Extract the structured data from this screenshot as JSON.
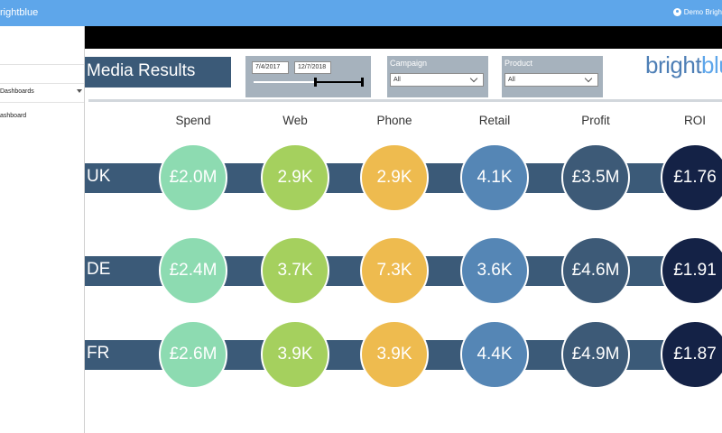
{
  "topbar": {
    "brand": "rightblue",
    "user": "Demo Brigh"
  },
  "sidebar": {
    "select_value": "Dashboards",
    "item": "ashboard"
  },
  "report": {
    "title": "Media Results",
    "date_from": "7/4/2017",
    "date_to": "12/7/2018",
    "filters": [
      {
        "label": "Campaign",
        "value": "All"
      },
      {
        "label": "Product",
        "value": "All"
      }
    ],
    "logo_part1": "bright",
    "logo_part2": "blu",
    "columns": [
      "Spend",
      "Web",
      "Phone",
      "Retail",
      "Profit",
      "ROI"
    ],
    "rows": [
      {
        "label": "UK",
        "values": [
          "£2.0M",
          "2.9K",
          "2.9K",
          "4.1K",
          "£3.5M",
          "£1.76"
        ]
      },
      {
        "label": "DE",
        "values": [
          "£2.4M",
          "3.7K",
          "7.3K",
          "3.6K",
          "£4.6M",
          "£1.91"
        ]
      },
      {
        "label": "FR",
        "values": [
          "£2.6M",
          "3.9K",
          "3.9K",
          "4.4K",
          "£4.9M",
          "£1.87"
        ]
      }
    ],
    "colors": [
      "#8ddbb1",
      "#a5d05e",
      "#eebb4f",
      "#5586b5",
      "#3d5a77",
      "#142246"
    ]
  }
}
